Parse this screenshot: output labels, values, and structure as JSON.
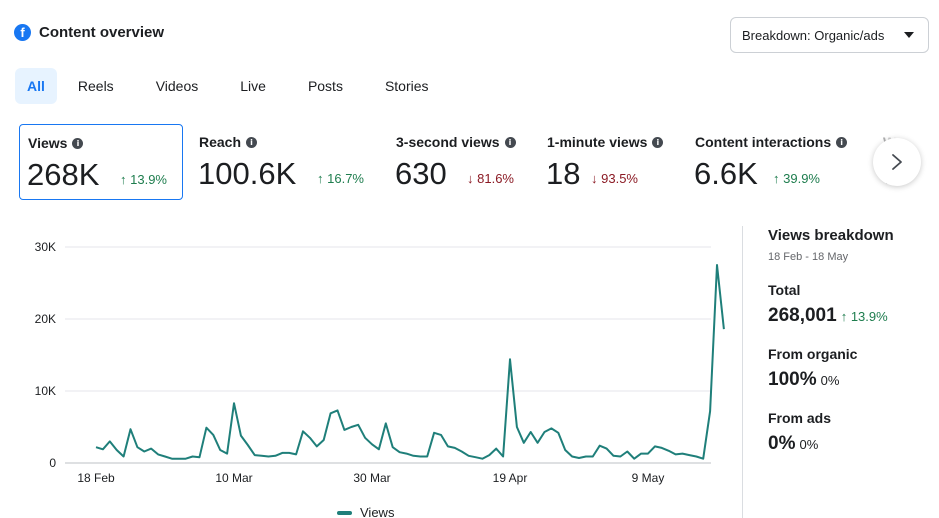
{
  "header": {
    "title": "Content overview",
    "logo_icon": "facebook-icon"
  },
  "breakdown": {
    "label": "Breakdown: Organic/ads"
  },
  "tabs": [
    {
      "label": "All",
      "active": true
    },
    {
      "label": "Reels"
    },
    {
      "label": "Videos"
    },
    {
      "label": "Live"
    },
    {
      "label": "Posts"
    },
    {
      "label": "Stories"
    }
  ],
  "metrics": [
    {
      "label": "Views",
      "value": "268K",
      "change": "13.9%",
      "direction": "up",
      "selected": true
    },
    {
      "label": "Reach",
      "value": "100.6K",
      "change": "16.7%",
      "direction": "up"
    },
    {
      "label": "3-second views",
      "value": "630",
      "change": "81.6%",
      "direction": "down"
    },
    {
      "label": "1-minute views",
      "value": "18",
      "change": "93.5%",
      "direction": "down"
    },
    {
      "label": "Content interactions",
      "value": "6.6K",
      "change": "39.9%",
      "direction": "up"
    },
    {
      "label": "Watch",
      "value": "…"
    }
  ],
  "breakdown_panel": {
    "title": "Views breakdown",
    "range": "18 Feb - 18 May",
    "total": {
      "label": "Total",
      "value": "268,001",
      "change": "13.9%"
    },
    "organic": {
      "label": "From organic",
      "value": "100%",
      "change": "0%"
    },
    "ads": {
      "label": "From ads",
      "value": "0%",
      "change": "0%"
    }
  },
  "colors": {
    "accent": "#1877f2",
    "line": "#1f7f7a",
    "up": "#1e7d4e",
    "down": "#8b1a24"
  },
  "chart_data": {
    "type": "line",
    "ylim": [
      0,
      30000
    ],
    "yticks": [
      0,
      10000,
      20000,
      30000
    ],
    "ytick_labels": [
      "0",
      "10K",
      "20K",
      "30K"
    ],
    "xtick_labels": [
      {
        "day": 0,
        "label": "18 Feb"
      },
      {
        "day": 20,
        "label": "10 Mar"
      },
      {
        "day": 40,
        "label": "30 Mar"
      },
      {
        "day": 60,
        "label": "19 Apr"
      },
      {
        "day": 80,
        "label": "9 May"
      }
    ],
    "series": [
      {
        "name": "Views",
        "values": [
          2200,
          1900,
          3000,
          1800,
          900,
          4700,
          2200,
          1600,
          2000,
          1200,
          900,
          600,
          600,
          600,
          900,
          800,
          4900,
          3900,
          1800,
          1300,
          8300,
          3800,
          2500,
          1100,
          1000,
          900,
          1000,
          1400,
          1400,
          1200,
          4400,
          3500,
          2300,
          3200,
          6900,
          7300,
          4600,
          5000,
          5300,
          3500,
          2600,
          1900,
          5500,
          2200,
          1500,
          1300,
          1000,
          900,
          900,
          4200,
          3900,
          2300,
          2100,
          1600,
          1000,
          800,
          600,
          1100,
          2000,
          900,
          14400,
          5000,
          2800,
          4300,
          2800,
          4300,
          4800,
          4200,
          1800,
          900,
          700,
          900,
          900,
          2400,
          2000,
          1000,
          900,
          1600,
          600,
          1300,
          1300,
          2300,
          2100,
          1700,
          1200,
          1300,
          1100,
          900,
          600,
          7200,
          27500,
          18600
        ]
      }
    ]
  }
}
